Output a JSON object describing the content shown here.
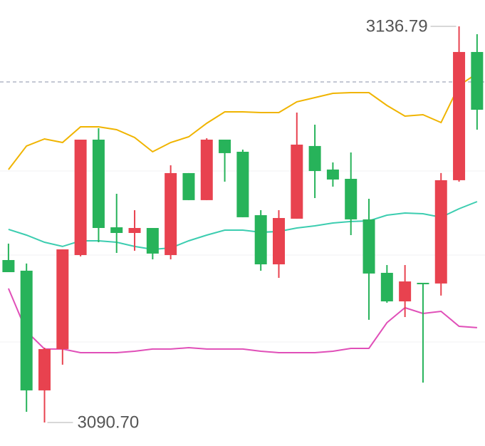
{
  "chart_data": {
    "type": "candlestick",
    "xlim": [
      -0.47,
      26.44
    ],
    "ylim": [
      3087.96,
      3139.86
    ],
    "up_color": "#e8424f",
    "down_color": "#27b35a",
    "open": [
      3109.6,
      3108.36,
      3094.43,
      3099.24,
      3110.18,
      3123.61,
      3113.41,
      3112.75,
      3113.33,
      3110.18,
      3119.72,
      3116.57,
      3123.61,
      3122.2,
      3114.82,
      3109.1,
      3114.41,
      3122.87,
      3120.13,
      3119.05,
      3114.33,
      3108.11,
      3104.79,
      3106.95,
      3106.87,
      3118.89,
      3133.81
    ],
    "high": [
      3111.51,
      3109.19,
      3099.4,
      3110.84,
      3123.61,
      3124.94,
      3117.31,
      3115.4,
      3113.33,
      3120.63,
      3119.72,
      3123.78,
      3123.61,
      3122.45,
      3115.4,
      3115.4,
      3126.76,
      3125.35,
      3120.96,
      3122.12,
      3116.73,
      3109.02,
      3109.02,
      3106.95,
      3119.72,
      3136.79,
      3135.88
    ],
    "low": [
      3108.19,
      3091.94,
      3090.7,
      3097.42,
      3110.02,
      3111.67,
      3110.43,
      3110.68,
      3109.68,
      3109.68,
      3116.57,
      3116.57,
      3118.72,
      3114.58,
      3108.36,
      3107.53,
      3114.41,
      3116.81,
      3118.14,
      3112.5,
      3102.64,
      3104.63,
      3102.97,
      3095.34,
      3105.46,
      3118.72,
      3124.77
    ],
    "close": [
      3108.19,
      3094.43,
      3099.24,
      3110.84,
      3123.61,
      3113.33,
      3112.75,
      3113.33,
      3110.35,
      3119.72,
      3116.57,
      3123.61,
      3122.04,
      3114.58,
      3109.1,
      3114.49,
      3123.03,
      3119.96,
      3118.97,
      3114.33,
      3108.03,
      3104.79,
      3107.11,
      3106.87,
      3118.89,
      3133.81,
      3127.09
    ],
    "lines": [
      {
        "color": "#f0b400",
        "values": [
          3120.13,
          3122.87,
          3123.69,
          3123.28,
          3125.1,
          3125.1,
          3124.77,
          3123.86,
          3122.2,
          3123.28,
          3123.94,
          3125.52,
          3126.84,
          3126.84,
          3126.76,
          3126.76,
          3128.01,
          3128.5,
          3129.0,
          3129.08,
          3129.08,
          3127.59,
          3126.35,
          3126.51,
          3125.6,
          3129.91,
          3131.32
        ]
      },
      {
        "color": "#3ccdb0",
        "values": [
          3113.17,
          3112.5,
          3111.67,
          3111.18,
          3111.84,
          3111.84,
          3111.67,
          3111.18,
          3110.84,
          3111.01,
          3111.84,
          3112.5,
          3113.08,
          3113.08,
          3112.83,
          3112.92,
          3113.33,
          3113.58,
          3113.91,
          3114.08,
          3114.16,
          3114.82,
          3115.07,
          3114.99,
          3114.58,
          3115.57,
          3116.4
        ]
      },
      {
        "color": "#e04fb8",
        "values": [
          3106.29,
          3101.31,
          3099.24,
          3099.24,
          3098.82,
          3098.82,
          3098.82,
          3098.99,
          3099.24,
          3099.24,
          3099.4,
          3099.24,
          3099.24,
          3099.24,
          3098.99,
          3098.82,
          3098.82,
          3098.82,
          3098.99,
          3099.32,
          3099.32,
          3102.31,
          3104.05,
          3103.38,
          3103.63,
          3101.89,
          3101.73
        ]
      }
    ],
    "reference_line": {
      "value": 3130.33,
      "color": "#8890a8"
    },
    "annotations": [
      3136.79,
      {
        "value": 3090.7,
        "label": "3090.70"
      }
    ]
  }
}
